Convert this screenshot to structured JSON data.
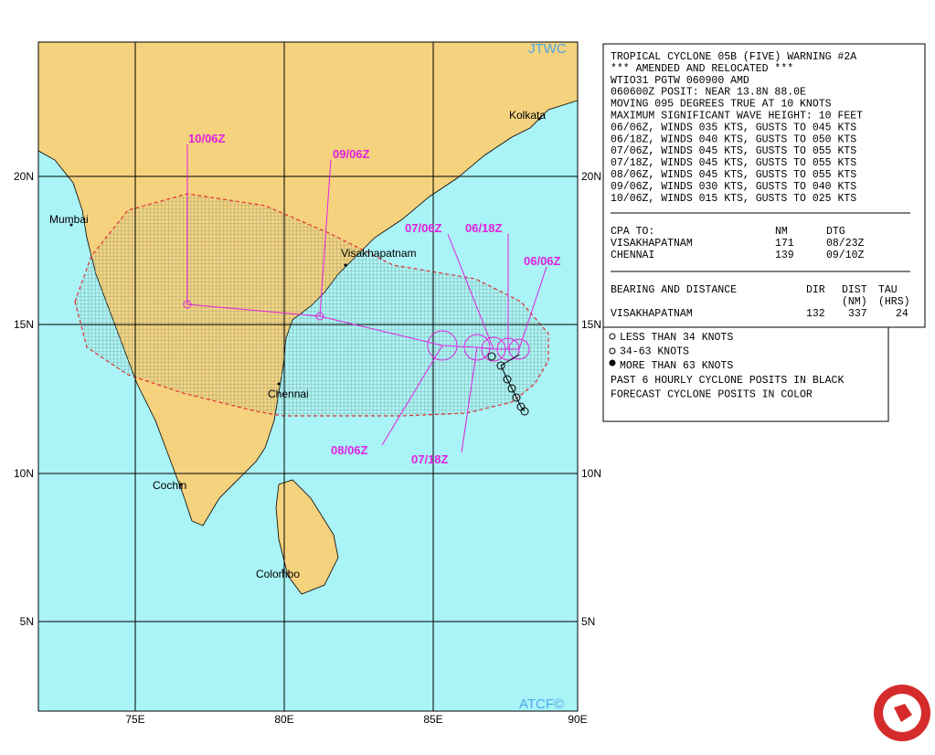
{
  "map": {
    "watermark": "JTWC",
    "credit": "ATCF©",
    "cities": [
      "Mumbai",
      "Visakhapatnam",
      "Kolkata",
      "Chennai",
      "Cochin",
      "Colombo"
    ],
    "lat_labels": [
      "20N",
      "15N",
      "10N",
      "5N"
    ],
    "lon_labels": [
      "75E",
      "80E",
      "85E",
      "90E"
    ],
    "forecast_labels": [
      "06/06Z",
      "06/18Z",
      "07/06Z",
      "07/18Z",
      "08/06Z",
      "09/06Z",
      "10/06Z"
    ]
  },
  "warning": {
    "lines": [
      "TROPICAL CYCLONE 05B (FIVE) WARNING #2A",
      "*** AMENDED AND RELOCATED ***",
      "WTIO31 PGTW 060900 AMD",
      "060600Z POSIT: NEAR 13.8N 88.0E",
      "MOVING 095 DEGREES TRUE AT 10 KNOTS",
      "MAXIMUM SIGNIFICANT WAVE HEIGHT: 10 FEET",
      "06/06Z, WINDS 035 KTS, GUSTS TO 045 KTS",
      "06/18Z, WINDS 040 KTS, GUSTS TO 050 KTS",
      "07/06Z, WINDS 045 KTS, GUSTS TO 055 KTS",
      "07/18Z, WINDS 045 KTS, GUSTS TO 055 KTS",
      "08/06Z, WINDS 045 KTS, GUSTS TO 055 KTS",
      "09/06Z, WINDS 030 KTS, GUSTS TO 040 KTS",
      "10/06Z, WINDS 015 KTS, GUSTS TO 025 KTS"
    ],
    "cpa": {
      "header": [
        "CPA TO:",
        "NM",
        "DTG"
      ],
      "rows": [
        [
          "VISAKHAPATNAM",
          "171",
          "08/23Z"
        ],
        [
          "CHENNAI",
          "139",
          "09/10Z"
        ]
      ]
    },
    "bearing": {
      "title": "BEARING AND DISTANCE",
      "header": [
        "DIR",
        "DIST",
        "TAU"
      ],
      "units": [
        "(NM)",
        "(HRS)"
      ],
      "row": [
        "VISAKHAPATNAM",
        "132",
        "337",
        "24"
      ]
    }
  },
  "legend": {
    "lines": [
      "LESS THAN 34 KNOTS",
      "34-63 KNOTS",
      "MORE THAN 63 KNOTS",
      "PAST 6 HOURLY CYCLONE POSITS IN BLACK",
      "FORECAST CYCLONE POSITS IN COLOR"
    ]
  }
}
